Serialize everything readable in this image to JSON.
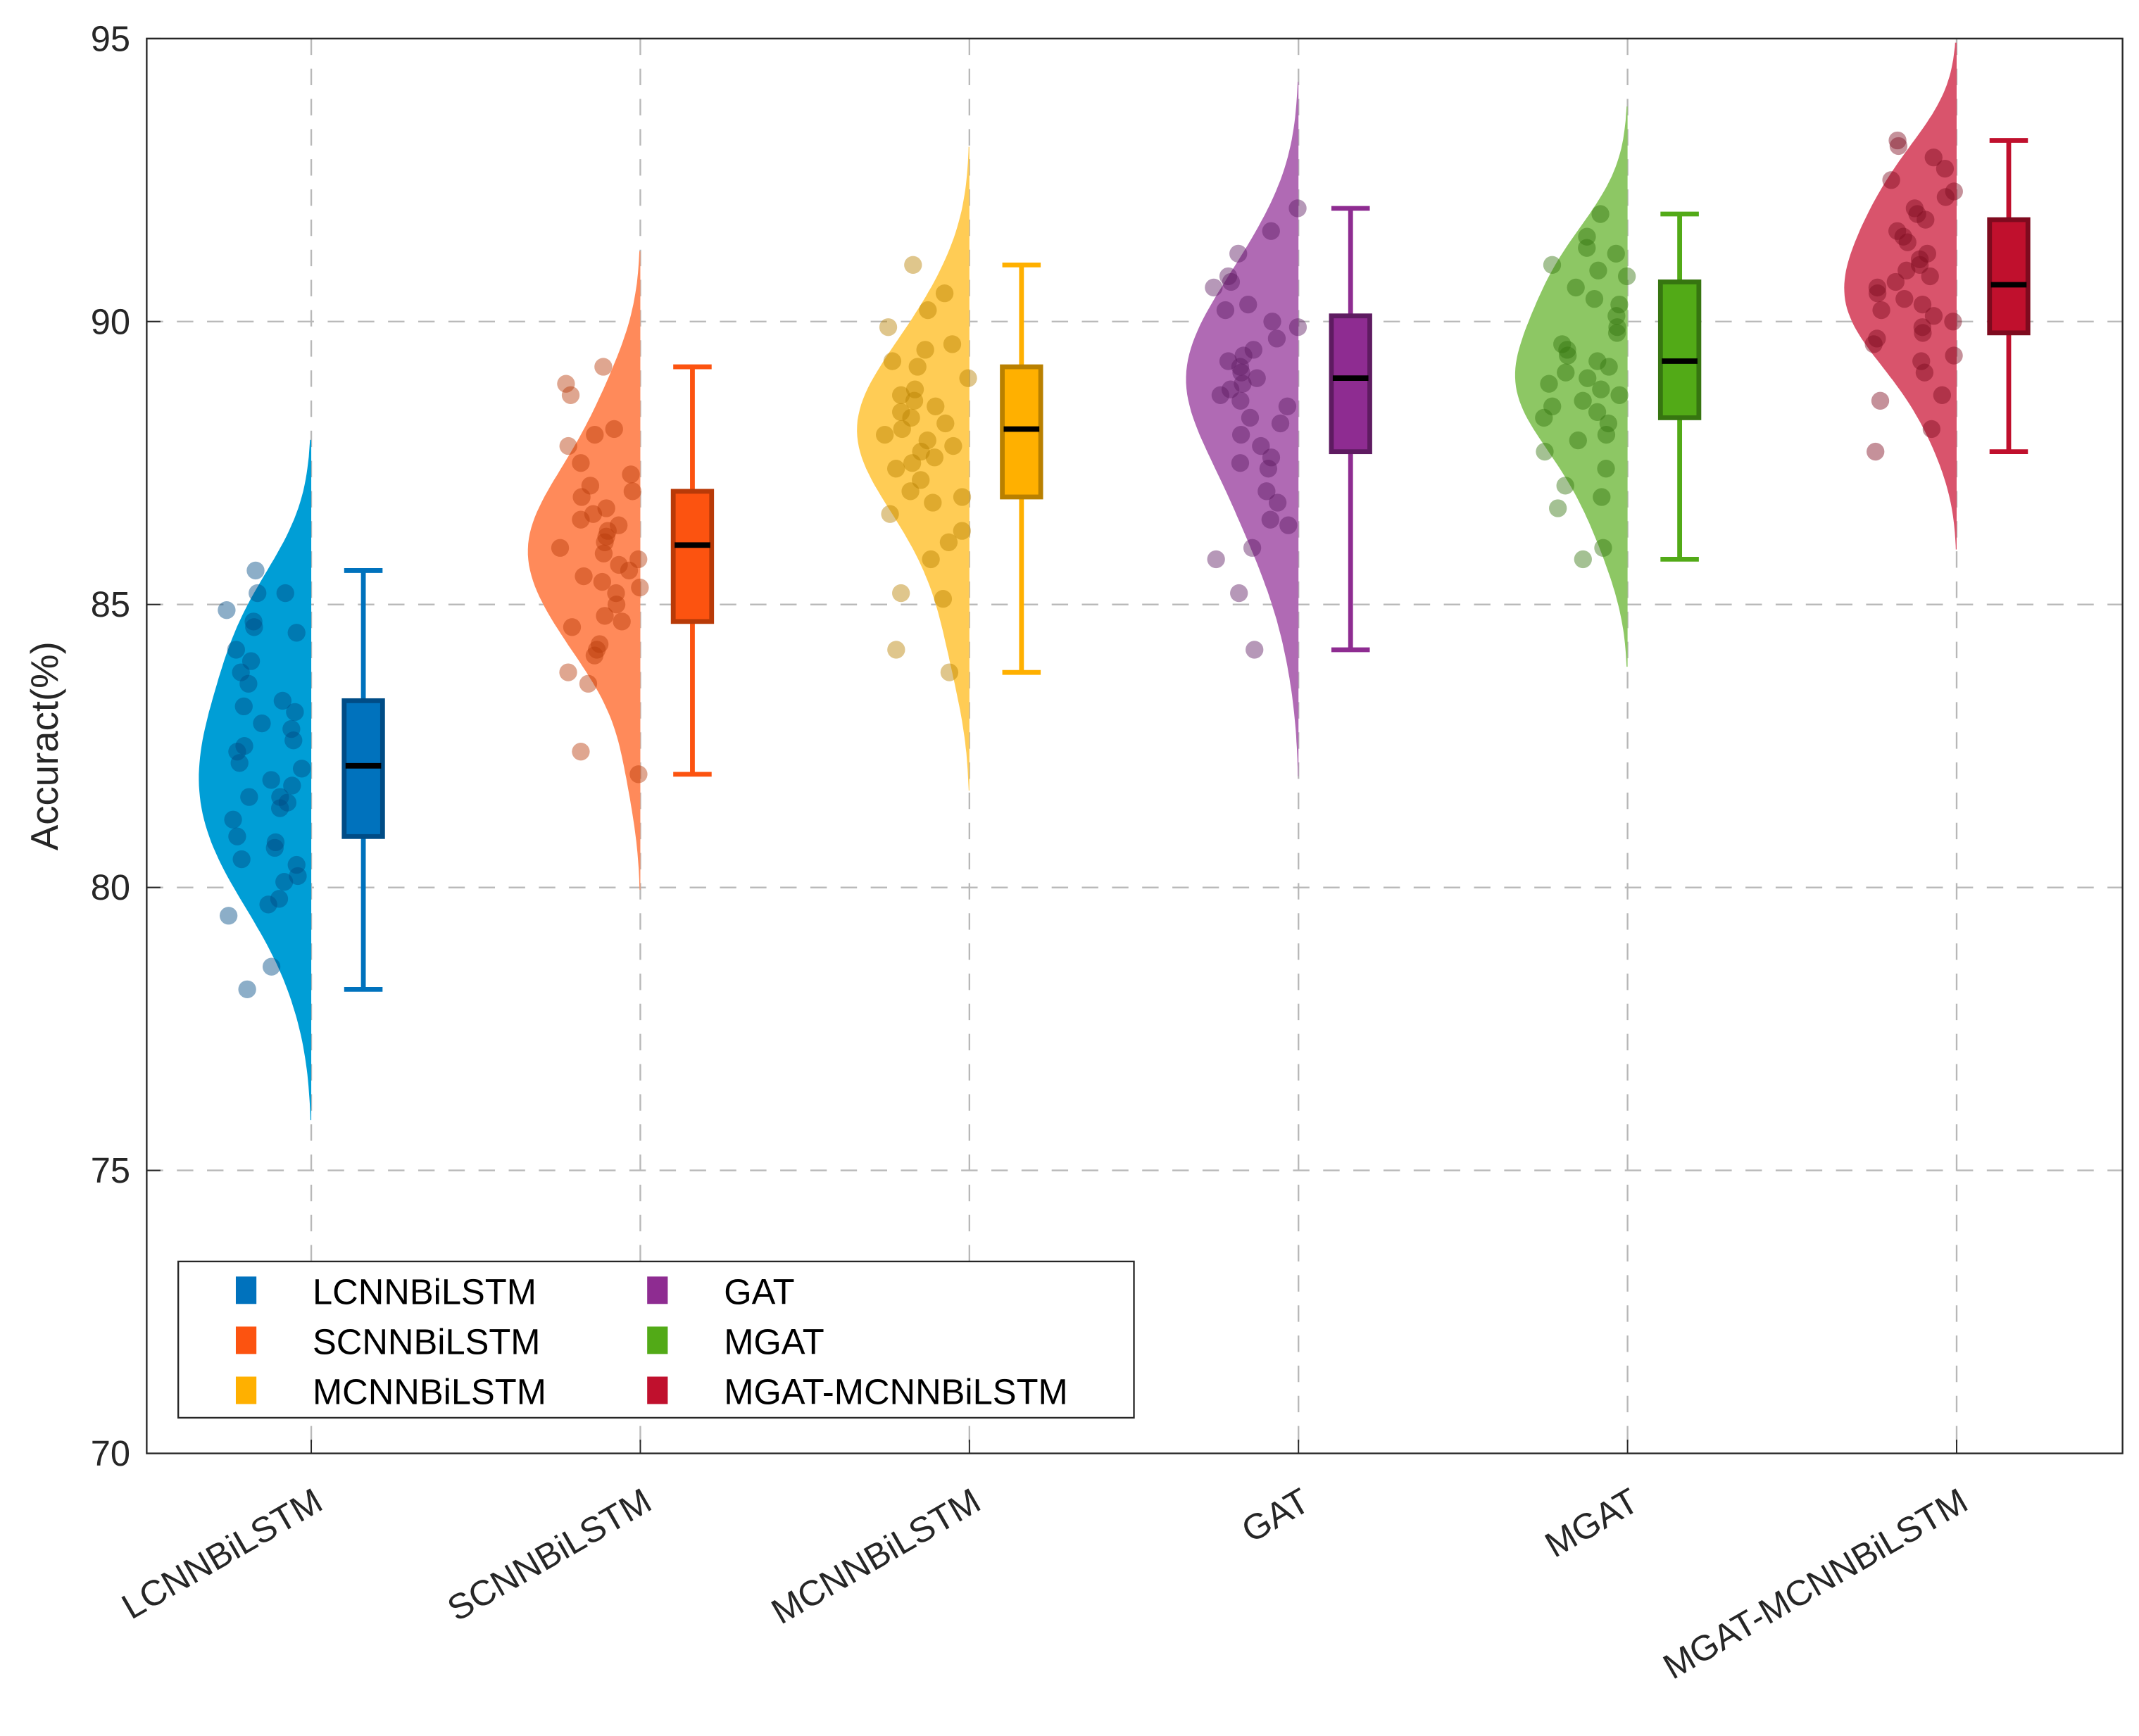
{
  "chart_data": {
    "type": "raincloud",
    "title": "",
    "xlabel": "",
    "ylabel": "Accuract(%)",
    "ylim": [
      70,
      95
    ],
    "yticks": [
      "70",
      "75",
      "80",
      "85",
      "90",
      "95"
    ],
    "grid": true,
    "legend_position": "bottom-left",
    "categories": [
      "LCNNBiLSTM",
      "SCNNBiLSTM",
      "MCNNBiLSTM",
      "GAT",
      "MGAT",
      "MGAT-MCNNBiLSTM"
    ],
    "series": [
      {
        "name": "LCNNBiLSTM",
        "color": "#0072BD",
        "violin_color": "#009ED6",
        "edge_color": "#004C86",
        "box": {
          "whisker_low": 78.2,
          "q1": 80.9,
          "median": 82.15,
          "q3": 83.3,
          "whisker_high": 85.6
        },
        "points": [
          85.6,
          85.2,
          85.2,
          84.9,
          84.7,
          84.6,
          84.5,
          84.2,
          84.0,
          83.8,
          83.6,
          83.3,
          83.2,
          83.1,
          82.9,
          82.8,
          82.6,
          82.5,
          82.4,
          82.2,
          82.1,
          81.9,
          81.6,
          81.6,
          81.5,
          81.4,
          81.2,
          80.9,
          80.8,
          80.7,
          80.5,
          80.4,
          80.2,
          80.1,
          79.8,
          79.7,
          79.5,
          78.6,
          78.2,
          81.8
        ]
      },
      {
        "name": "SCNNBiLSTM",
        "color": "#FC5310",
        "violin_color": "#FF8A5A",
        "edge_color": "#B83A08",
        "box": {
          "whisker_low": 82.0,
          "q1": 84.7,
          "median": 86.05,
          "q3": 87.0,
          "whisker_high": 89.2
        },
        "points": [
          89.2,
          88.9,
          88.7,
          88.1,
          88.0,
          87.8,
          87.5,
          87.3,
          87.1,
          87.0,
          86.9,
          86.7,
          86.5,
          86.4,
          86.3,
          86.2,
          86.1,
          86.0,
          85.9,
          85.8,
          85.7,
          85.6,
          85.5,
          85.3,
          85.2,
          85.0,
          84.8,
          84.7,
          84.6,
          84.3,
          84.1,
          83.8,
          83.6,
          82.4,
          82.0,
          86.6,
          85.4,
          84.2
        ]
      },
      {
        "name": "MCNNBiLSTM",
        "color": "#FFB000",
        "violin_color": "#FFCC55",
        "edge_color": "#B98000",
        "box": {
          "whisker_low": 83.8,
          "q1": 86.9,
          "median": 88.1,
          "q3": 89.2,
          "whisker_high": 91.0
        },
        "points": [
          91.0,
          90.5,
          90.2,
          89.9,
          89.6,
          89.5,
          89.3,
          89.2,
          89.0,
          88.8,
          88.6,
          88.5,
          88.4,
          88.3,
          88.2,
          88.1,
          88.0,
          87.9,
          87.8,
          87.7,
          87.5,
          87.4,
          87.2,
          87.0,
          86.9,
          86.6,
          86.3,
          86.1,
          85.8,
          85.2,
          85.1,
          84.2,
          83.8,
          88.7,
          87.6,
          86.8
        ]
      },
      {
        "name": "GAT",
        "color": "#8E2C91",
        "violin_color": "#B06AB4",
        "edge_color": "#5E1B61",
        "box": {
          "whisker_low": 84.2,
          "q1": 87.7,
          "median": 89.0,
          "q3": 90.1,
          "whisker_high": 92.0
        },
        "points": [
          92.0,
          91.6,
          91.2,
          90.8,
          90.7,
          90.6,
          90.3,
          90.2,
          90.0,
          89.9,
          89.7,
          89.5,
          89.4,
          89.2,
          89.1,
          89.0,
          88.9,
          88.7,
          88.6,
          88.5,
          88.3,
          88.2,
          88.0,
          87.8,
          87.6,
          87.5,
          87.4,
          87.0,
          86.8,
          86.5,
          86.4,
          86.0,
          85.8,
          85.2,
          84.2,
          89.3,
          88.8
        ]
      },
      {
        "name": "MGAT",
        "color": "#52AA17",
        "violin_color": "#8DC764",
        "edge_color": "#367510",
        "box": {
          "whisker_low": 85.8,
          "q1": 88.3,
          "median": 89.3,
          "q3": 90.7,
          "whisker_high": 91.9
        },
        "points": [
          91.9,
          91.5,
          91.3,
          91.2,
          91.0,
          90.9,
          90.8,
          90.6,
          90.4,
          90.3,
          90.1,
          89.9,
          89.8,
          89.6,
          89.5,
          89.4,
          89.3,
          89.2,
          89.0,
          88.9,
          88.8,
          88.7,
          88.5,
          88.4,
          88.3,
          88.2,
          88.0,
          87.9,
          87.7,
          87.4,
          87.1,
          86.9,
          86.7,
          86.0,
          85.8,
          89.1,
          88.6
        ]
      },
      {
        "name": "MGAT-MCNNBiLSTM",
        "color": "#C0102D",
        "violin_color": "#D9546C",
        "edge_color": "#7E0A1E",
        "box": {
          "whisker_low": 87.7,
          "q1": 89.8,
          "median": 90.65,
          "q3": 91.8,
          "whisker_high": 93.2
        },
        "points": [
          93.2,
          93.1,
          92.9,
          92.7,
          92.5,
          92.3,
          92.2,
          92.0,
          91.9,
          91.8,
          91.6,
          91.5,
          91.4,
          91.2,
          91.1,
          91.0,
          90.9,
          90.8,
          90.6,
          90.5,
          90.4,
          90.3,
          90.2,
          90.1,
          90.0,
          89.9,
          89.8,
          89.7,
          89.6,
          89.4,
          89.3,
          89.1,
          88.7,
          88.6,
          88.1,
          87.7,
          90.7
        ]
      }
    ]
  }
}
